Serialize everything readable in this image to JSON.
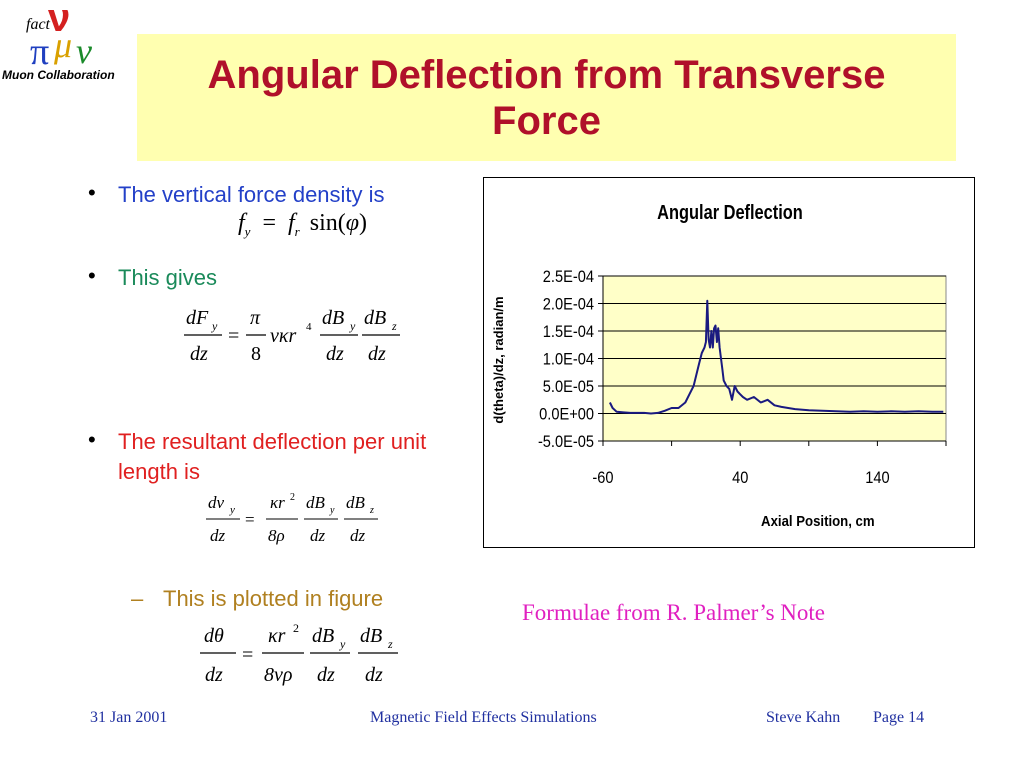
{
  "logo": {
    "fact": "fact",
    "v": "ν",
    "pi": "π",
    "mu": "μ",
    "nu": "ν",
    "collaboration": "Muon Collaboration"
  },
  "title": "Angular Deflection from Transverse Force",
  "bullets": [
    {
      "text": "The vertical force  density is",
      "color": "#2340c8"
    },
    {
      "text": "This gives",
      "color": "#1a8a5a"
    },
    {
      "text": "The resultant deflection per unit length is",
      "color": "#e02020"
    }
  ],
  "sub_bullet": {
    "dash": "–",
    "text": "This is plotted in figure",
    "color": "#b08020"
  },
  "equations": {
    "eq1": {
      "lhs_f": "f",
      "lhs_sub": "y",
      "eq": "=",
      "rhs_f": "f",
      "rhs_sub": "r",
      "sin": "sin(",
      "phi": "φ",
      "close": ")"
    },
    "eq2": {
      "num1": "dF",
      "num1_sub": "y",
      "den": "dz",
      "eq": "=",
      "pi": "π",
      "eight": "8",
      "vkr": "νκr",
      "pow": "4",
      "dB": "dB",
      "sub_y": "y",
      "sub_z": "z"
    },
    "eq3": {
      "num1": "dv",
      "num1_sub": "y",
      "den": "dz",
      "eq": "=",
      "kr": "κr",
      "pow": "2",
      "eightrho": "8ρ",
      "dB": "dB",
      "sub_y": "y",
      "sub_z": "z"
    },
    "eq4": {
      "num1": "dθ",
      "den": "dz",
      "eq": "=",
      "kr": "κr",
      "pow": "2",
      "eightvrho": "8νρ",
      "dB": "dB",
      "sub_y": "y",
      "sub_z": "z"
    }
  },
  "note": "Formulae from R. Palmer’s Note",
  "footer": {
    "date": "31 Jan 2001",
    "center": "Magnetic Field Effects Simulations",
    "author": "Steve Kahn",
    "page": "Page 14"
  },
  "chart_data": {
    "type": "line",
    "title": "Angular Deflection",
    "xlabel": "Axial Position, cm",
    "ylabel": "d(theta)/dz, radian/m",
    "xlim": [
      -60,
      190
    ],
    "ylim": [
      -5e-05,
      0.00025
    ],
    "x_ticks": [
      "-60",
      "40",
      "140"
    ],
    "y_ticks": [
      "2.5E-04",
      "2.0E-04",
      "1.5E-04",
      "1.0E-04",
      "5.0E-05",
      "0.0E+00",
      "-5.0E-05"
    ],
    "grid": true,
    "plot_bg": "#ffffc8",
    "line_color": "#1a1a80",
    "series": [
      {
        "x": [
          -55,
          -53,
          -50,
          -45,
          -40,
          -35,
          -30,
          -25,
          -20,
          -15,
          -10,
          -5,
          0,
          3,
          6,
          8,
          10,
          12,
          14,
          15,
          16,
          17,
          18,
          19,
          20,
          21,
          22,
          23,
          24,
          25,
          26,
          27,
          28,
          30,
          32,
          34,
          36,
          38,
          40,
          42,
          45,
          50,
          55,
          60,
          65,
          70,
          75,
          80,
          90,
          100,
          110,
          120,
          130,
          140,
          150,
          160,
          170,
          180,
          188
        ],
        "values": [
          2e-05,
          1e-05,
          3e-06,
          2e-06,
          1e-06,
          1e-06,
          1e-06,
          0.0,
          1e-06,
          5e-06,
          1e-05,
          1e-05,
          2e-05,
          3.5e-05,
          5e-05,
          7e-05,
          9e-05,
          0.00011,
          0.00012,
          0.00013,
          0.000205,
          0.000135,
          0.00012,
          0.00015,
          0.00012,
          0.000155,
          0.00016,
          0.00013,
          0.000155,
          0.00012,
          0.0001,
          8e-05,
          6e-05,
          5e-05,
          4.5e-05,
          2.5e-05,
          5e-05,
          4e-05,
          3.5e-05,
          3e-05,
          2.5e-05,
          3e-05,
          2e-05,
          2.5e-05,
          1.5e-05,
          1.2e-05,
          1e-05,
          8e-06,
          6e-06,
          5e-06,
          4e-06,
          3e-06,
          4e-06,
          3e-06,
          4e-06,
          3e-06,
          4e-06,
          3e-06,
          3e-06
        ]
      }
    ]
  }
}
